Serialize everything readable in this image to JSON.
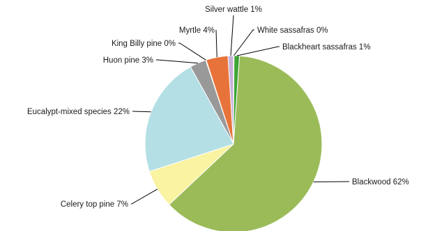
{
  "chart_data": {
    "type": "pie",
    "title": "",
    "start_angle_deg": 90,
    "direction": "clockwise",
    "slices": [
      {
        "name": "White sassafras",
        "value": 0,
        "label": "White sassafras 0%",
        "color": "#2e8b57"
      },
      {
        "name": "Blackheart sassafras",
        "value": 1,
        "label": "Blackheart sassafras 1%",
        "color": "#3fa535"
      },
      {
        "name": "Blackwood",
        "value": 62,
        "label": "Blackwood 62%",
        "color": "#9bbb59"
      },
      {
        "name": "Celery top pine",
        "value": 7,
        "label": "Celery top pine 7%",
        "color": "#f9f3a2"
      },
      {
        "name": "Eucalypt-mixed species",
        "value": 22,
        "label": "Eucalypt-mixed species 22%",
        "color": "#b3dfe5"
      },
      {
        "name": "Huon pine",
        "value": 3,
        "label": "Huon pine 3%",
        "color": "#999999"
      },
      {
        "name": "King Billy pine",
        "value": 0,
        "label": "King Billy pine 0%",
        "color": "#5b3a22"
      },
      {
        "name": "Myrtle",
        "value": 4,
        "label": "Myrtle 4%",
        "color": "#e8733a"
      },
      {
        "name": "Silver wattle",
        "value": 1,
        "label": "Silver wattle 1%",
        "color": "#c9b3d9"
      }
    ]
  }
}
